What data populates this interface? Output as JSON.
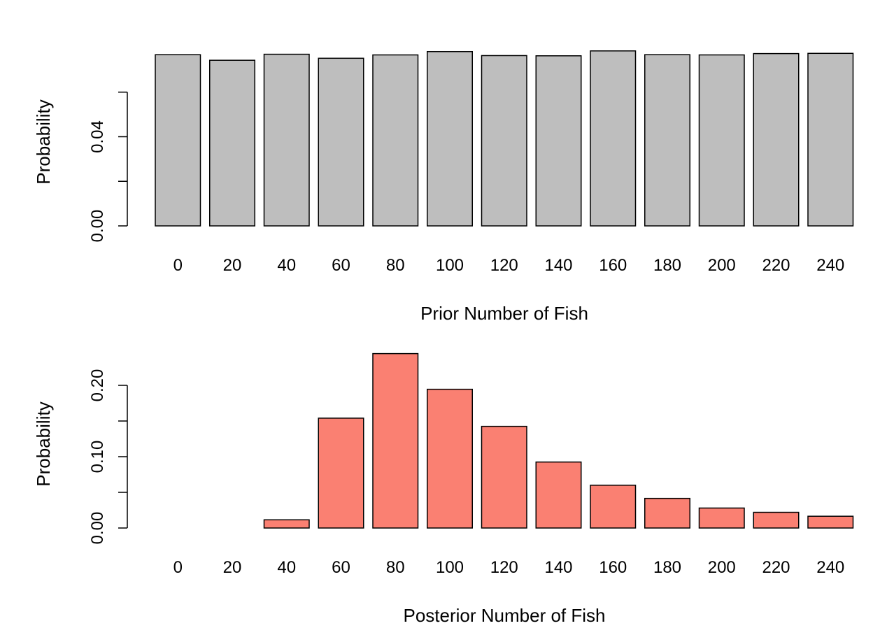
{
  "chart_data": [
    {
      "type": "bar",
      "xlabel": "Prior Number of Fish",
      "ylabel": "Probability",
      "categories": [
        "0",
        "20",
        "40",
        "60",
        "80",
        "100",
        "120",
        "140",
        "160",
        "180",
        "200",
        "220",
        "240"
      ],
      "values": [
        0.0768,
        0.0743,
        0.077,
        0.0752,
        0.0767,
        0.0782,
        0.0764,
        0.0763,
        0.0785,
        0.0768,
        0.0767,
        0.0773,
        0.0774
      ],
      "ylim": [
        0,
        0.08
      ],
      "yticks": [
        0.0,
        0.02,
        0.04,
        0.06
      ],
      "yticklabels": [
        "0.00",
        "",
        "0.04",
        ""
      ],
      "bar_color": "#bebebe",
      "grid": false,
      "legend": "none"
    },
    {
      "type": "bar",
      "xlabel": "Posterior Number of Fish",
      "ylabel": "Probability",
      "categories": [
        "0",
        "20",
        "40",
        "60",
        "80",
        "100",
        "120",
        "140",
        "160",
        "180",
        "200",
        "220",
        "240"
      ],
      "values": [
        0.0,
        0.0,
        0.0115,
        0.154,
        0.2445,
        0.1945,
        0.1425,
        0.0925,
        0.06,
        0.0415,
        0.028,
        0.022,
        0.0165
      ],
      "ylim": [
        0,
        0.25
      ],
      "yticks": [
        0.0,
        0.05,
        0.1,
        0.15,
        0.2
      ],
      "yticklabels": [
        "0.00",
        "",
        "0.10",
        "",
        "0.20"
      ],
      "bar_color": "#fa8072",
      "grid": false,
      "legend": "none"
    }
  ]
}
